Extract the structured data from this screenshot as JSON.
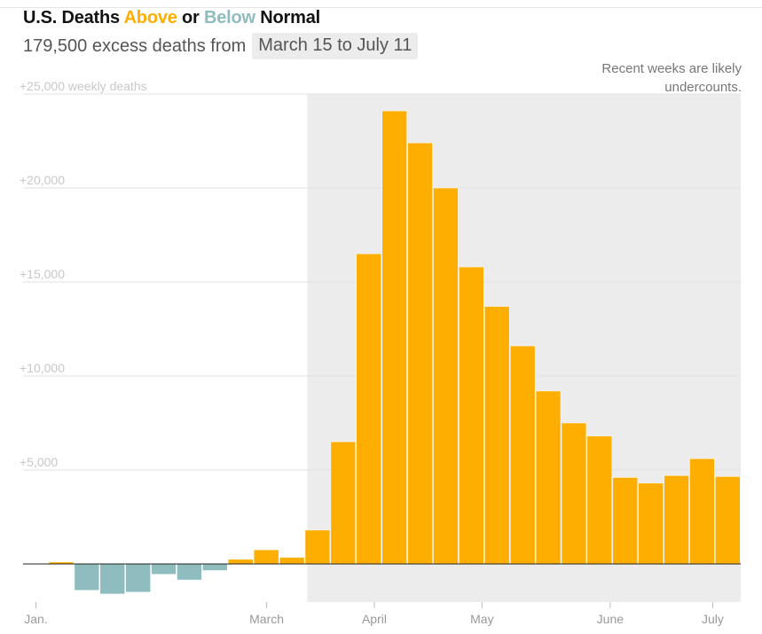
{
  "header": {
    "title_prefix": "U.S. Deaths ",
    "title_above": "Above",
    "title_middle": " or ",
    "title_below": "Below",
    "title_suffix": " Normal",
    "subtitle_lead": "179,500 excess deaths from",
    "subtitle_range": "March 15 to July 11",
    "note": "Recent weeks are likely undercounts."
  },
  "colors": {
    "above": "#fdae00",
    "below": "#8fbcbf",
    "highlight_band": "#ececec",
    "gridline": "#e2e2e2",
    "tick_text": "#c8c8c8",
    "axis_text": "#999999"
  },
  "chart_data": {
    "type": "bar",
    "title": "U.S. Deaths Above or Below Normal",
    "ylabel": "weekly deaths",
    "ylim": [
      -1700,
      25000
    ],
    "y_ticks": [
      {
        "value": 5000,
        "label": "+5,000"
      },
      {
        "value": 10000,
        "label": "+10,000"
      },
      {
        "value": 15000,
        "label": "+15,000"
      },
      {
        "value": 20000,
        "label": "+20,000"
      },
      {
        "value": 25000,
        "label": "+25,000 weekly deaths"
      }
    ],
    "x_ticks": [
      {
        "week": 0,
        "label": "Jan."
      },
      {
        "week": 9,
        "label": "March"
      },
      {
        "week": 13.2,
        "label": "April"
      },
      {
        "week": 17.4,
        "label": "May"
      },
      {
        "week": 22.4,
        "label": "June"
      },
      {
        "week": 26.4,
        "label": "July"
      }
    ],
    "highlight_from_week": 10.1,
    "first_bar_week": 1,
    "values": [
      100,
      -1400,
      -1600,
      -1500,
      -550,
      -850,
      -350,
      250,
      750,
      350,
      1800,
      6500,
      16500,
      24100,
      22400,
      20000,
      15800,
      13700,
      11600,
      9200,
      7500,
      6800,
      4600,
      4300,
      4700,
      5600,
      4650
    ]
  }
}
